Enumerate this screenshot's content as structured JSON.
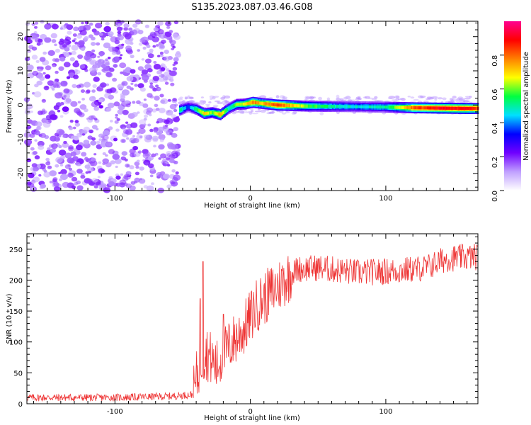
{
  "title": "S135.2023.087.03.46.G08",
  "chart_data": [
    {
      "type": "heatmap",
      "title": "S135.2023.087.03.46.G08",
      "xlabel": "Height of straight line (km)",
      "ylabel": "Frequency (Hz)",
      "xlim": [
        -165,
        168
      ],
      "ylim": [
        -25,
        24.5
      ],
      "xticks": [
        -100,
        0,
        100
      ],
      "yticks": [
        20,
        10,
        0,
        -10,
        -20
      ],
      "colorbar": {
        "label": "Normalized spectral amplitude",
        "range": [
          0,
          1
        ],
        "ticks": [
          0.0,
          0.2,
          0.4,
          0.6,
          0.8
        ],
        "colors": [
          "#ffffff",
          "#c0a0ff",
          "#7000ff",
          "#0000ff",
          "#00e0ff",
          "#00ff40",
          "#ffff00",
          "#ff8000",
          "#ff0000",
          "#ff0090"
        ]
      },
      "noise_region_end_km": -53,
      "signal_ridge": [
        {
          "x": -52,
          "f": -1.5,
          "a": 0.55
        },
        {
          "x": -46,
          "f": -0.5,
          "a": 0.35
        },
        {
          "x": -40,
          "f": -1.2,
          "a": 0.55
        },
        {
          "x": -34,
          "f": -2.5,
          "a": 0.7
        },
        {
          "x": -28,
          "f": -2.2,
          "a": 0.6
        },
        {
          "x": -22,
          "f": -2.8,
          "a": 0.75
        },
        {
          "x": -16,
          "f": -1.0,
          "a": 0.5
        },
        {
          "x": -10,
          "f": 0.2,
          "a": 0.6
        },
        {
          "x": -4,
          "f": 0.3,
          "a": 0.65
        },
        {
          "x": 2,
          "f": 0.8,
          "a": 0.8
        },
        {
          "x": 8,
          "f": 0.5,
          "a": 0.7
        },
        {
          "x": 20,
          "f": 0.0,
          "a": 0.85
        },
        {
          "x": 40,
          "f": -0.3,
          "a": 0.6
        },
        {
          "x": 60,
          "f": -0.4,
          "a": 0.5
        },
        {
          "x": 80,
          "f": -0.5,
          "a": 0.45
        },
        {
          "x": 100,
          "f": -0.6,
          "a": 0.5
        },
        {
          "x": 120,
          "f": -0.8,
          "a": 0.8
        },
        {
          "x": 140,
          "f": -0.9,
          "a": 0.9
        },
        {
          "x": 160,
          "f": -1.0,
          "a": 0.88
        },
        {
          "x": 168,
          "f": -1.0,
          "a": 0.85
        }
      ]
    },
    {
      "type": "line",
      "xlabel": "Height of straight line (km)",
      "ylabel": "SNR (10 * v/v)",
      "xlim": [
        -165,
        168
      ],
      "ylim": [
        0,
        275
      ],
      "xticks": [
        -100,
        0,
        100
      ],
      "yticks": [
        0,
        50,
        100,
        150,
        200,
        250
      ],
      "color": "#ee3333",
      "trend": [
        {
          "x": -165,
          "y": 10
        },
        {
          "x": -100,
          "y": 10
        },
        {
          "x": -60,
          "y": 12
        },
        {
          "x": -42,
          "y": 15
        },
        {
          "x": -38,
          "y": 60
        },
        {
          "x": -33,
          "y": 85
        },
        {
          "x": -25,
          "y": 60
        },
        {
          "x": -15,
          "y": 95
        },
        {
          "x": -5,
          "y": 120
        },
        {
          "x": 5,
          "y": 160
        },
        {
          "x": 15,
          "y": 180
        },
        {
          "x": 25,
          "y": 200
        },
        {
          "x": 35,
          "y": 218
        },
        {
          "x": 50,
          "y": 220
        },
        {
          "x": 80,
          "y": 212
        },
        {
          "x": 110,
          "y": 215
        },
        {
          "x": 130,
          "y": 220
        },
        {
          "x": 145,
          "y": 235
        },
        {
          "x": 168,
          "y": 238
        }
      ],
      "spikes": [
        {
          "x": -35,
          "y": 230
        },
        {
          "x": -37,
          "y": 170
        },
        {
          "x": -20,
          "y": 145
        }
      ]
    }
  ]
}
